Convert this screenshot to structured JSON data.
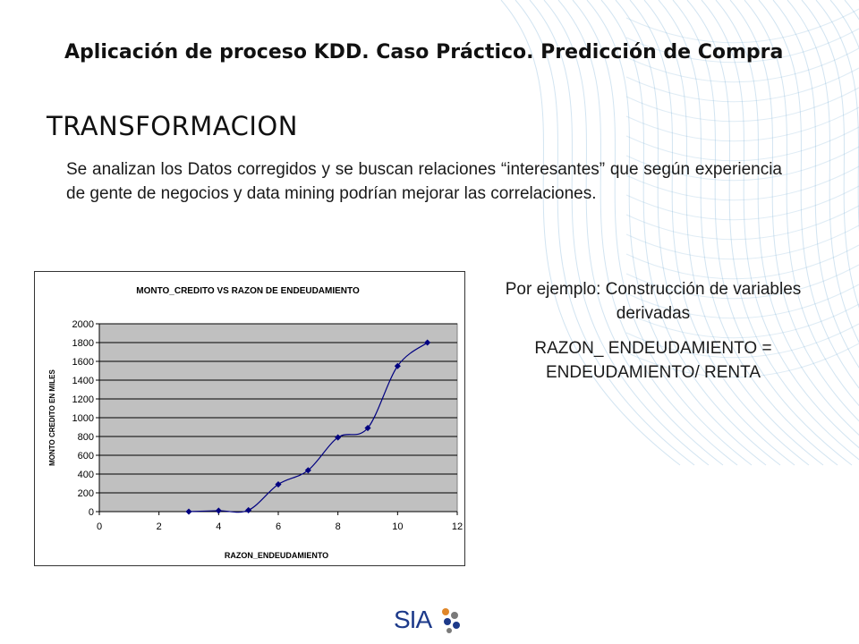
{
  "header": {
    "title": "Aplicación de proceso KDD. Caso Práctico. Predicción de Compra"
  },
  "section": {
    "title": "TRANSFORMACION",
    "body": "Se analizan los Datos corregidos y se buscan relaciones “interesantes” que según experiencia de gente de negocios y data mining podrían mejorar las correlaciones."
  },
  "side_note": {
    "line1": "Por ejemplo: Construcción de variables derivadas",
    "line2": "RAZON_ ENDEUDAMIENTO = ENDEUDAMIENTO/ RENTA"
  },
  "logo": {
    "text": "SIA"
  },
  "colors": {
    "plot_bg": "#c0c0c0",
    "series": "#000080",
    "pattern": "#7fb3d8"
  },
  "chart_data": {
    "type": "scatter",
    "title": "MONTO_CREDITO VS RAZON DE ENDEUDAMIENTO",
    "xlabel": "RAZON_ENDEUDAMIENTO",
    "ylabel": "MONTO CREDITO EN MILES",
    "xlim": [
      0,
      12
    ],
    "ylim": [
      0,
      2000
    ],
    "xticks": [
      0,
      2,
      4,
      6,
      8,
      10,
      12
    ],
    "yticks": [
      0,
      200,
      400,
      600,
      800,
      1000,
      1200,
      1400,
      1600,
      1800,
      2000
    ],
    "grid": true,
    "smoothed_line": true,
    "series": [
      {
        "x": [
          3,
          4,
          5,
          6,
          7,
          8,
          9,
          10,
          11
        ],
        "y": [
          0,
          10,
          15,
          290,
          440,
          790,
          890,
          1550,
          1800
        ]
      }
    ]
  }
}
